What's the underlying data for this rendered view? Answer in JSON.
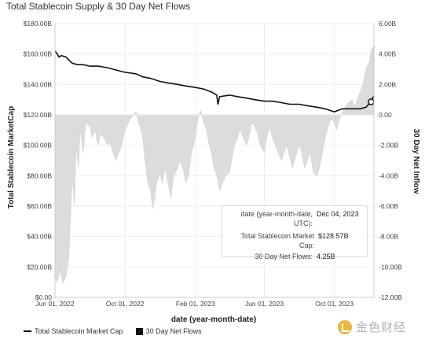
{
  "chart_title": "Total Stablecoin Supply & 30 Day Net Flows",
  "tooltip": {
    "date_label": "date (year-month-date, UTC):",
    "date_value": "Dec 04, 2023",
    "market_cap_label": "Total Stablecoin Market Cap:",
    "market_cap_value": "$128.57B",
    "flows_label": "30 Day Net Flows:",
    "flows_value": "4.25B"
  },
  "legend": {
    "market_cap": "Total Stablecoin Market Cap",
    "net_flows": "30 Day Net Flows"
  },
  "watermark": "金色财经",
  "colors": {
    "line": "#111111",
    "area": "#dcdcdc",
    "grid": "#eeeeee",
    "axis_text": "#444444"
  },
  "chart_data": {
    "type": "line",
    "title": "Total Stablecoin Supply & 30 Day Net Flows",
    "xlabel": "date (year-month-date)",
    "ylabel": "Total Stablecoin MarketCap",
    "y2label": "30 Day Net Inflow",
    "xlim": [
      "2022-06-01",
      "2023-12-09"
    ],
    "ylim": [
      0,
      180
    ],
    "y2lim": [
      -12,
      6
    ],
    "x_ticks": [
      "2022-06-01",
      "2022-10-01",
      "2023-02-01",
      "2023-06-01",
      "2023-10-01"
    ],
    "x_tick_labels": [
      "Jun 01, 2022",
      "Oct 01, 2022",
      "Feb 01, 2023",
      "Jun 01, 2023",
      "Oct 01, 2023"
    ],
    "y_ticks": [
      "$0.00",
      "$20.00B",
      "$40.00B",
      "$60.00B",
      "$80.00B",
      "$100.00B",
      "$120.00B",
      "$140.00B",
      "$160.00B",
      "$180.00B"
    ],
    "y2_ticks": [
      "-12.00B",
      "-10.00B",
      "-8.00B",
      "-6.00B",
      "-4.00B",
      "-2.00B",
      "0.00",
      "2.00B",
      "4.00B",
      "6.00B"
    ],
    "grid": true,
    "legend_position": "bottom-left",
    "series": [
      {
        "name": "Total Stablecoin Market Cap",
        "type": "line",
        "axis": "left",
        "x": [
          "2022-06-01",
          "2022-06-05",
          "2022-06-08",
          "2022-06-12",
          "2022-06-20",
          "2022-07-01",
          "2022-07-10",
          "2022-07-20",
          "2022-08-01",
          "2022-08-15",
          "2022-09-01",
          "2022-09-20",
          "2022-10-01",
          "2022-10-20",
          "2022-11-01",
          "2022-11-15",
          "2022-12-01",
          "2022-12-15",
          "2023-01-01",
          "2023-01-15",
          "2023-02-01",
          "2023-02-15",
          "2023-03-01",
          "2023-03-10",
          "2023-03-12",
          "2023-03-15",
          "2023-04-01",
          "2023-04-15",
          "2023-05-01",
          "2023-05-15",
          "2023-06-01",
          "2023-06-15",
          "2023-07-01",
          "2023-07-15",
          "2023-08-01",
          "2023-08-15",
          "2023-09-01",
          "2023-09-15",
          "2023-10-01",
          "2023-10-15",
          "2023-11-01",
          "2023-11-15",
          "2023-11-25",
          "2023-12-04",
          "2023-12-08"
        ],
        "values": [
          162,
          160,
          158,
          159,
          158,
          154,
          153,
          153,
          152,
          152,
          151,
          149,
          148,
          147,
          145,
          144,
          142,
          141,
          140,
          139,
          138,
          137,
          135,
          133,
          127,
          132,
          133,
          132,
          131,
          130,
          129,
          129,
          128,
          127,
          127,
          126,
          125,
          124,
          122,
          124,
          124,
          124,
          125,
          128.57,
          132
        ]
      },
      {
        "name": "30 Day Net Flows",
        "type": "area",
        "axis": "right",
        "x": [
          "2022-06-01",
          "2022-06-05",
          "2022-06-10",
          "2022-06-15",
          "2022-06-20",
          "2022-06-25",
          "2022-07-01",
          "2022-07-05",
          "2022-07-08",
          "2022-07-12",
          "2022-07-15",
          "2022-07-20",
          "2022-07-25",
          "2022-08-01",
          "2022-08-05",
          "2022-08-10",
          "2022-08-15",
          "2022-08-20",
          "2022-08-25",
          "2022-09-01",
          "2022-09-05",
          "2022-09-10",
          "2022-09-15",
          "2022-09-20",
          "2022-09-25",
          "2022-10-01",
          "2022-10-10",
          "2022-10-20",
          "2022-10-25",
          "2022-11-01",
          "2022-11-05",
          "2022-11-10",
          "2022-11-15",
          "2022-11-18",
          "2022-11-22",
          "2022-11-25",
          "2022-12-01",
          "2022-12-05",
          "2022-12-10",
          "2022-12-15",
          "2022-12-20",
          "2022-12-25",
          "2023-01-01",
          "2023-01-05",
          "2023-01-10",
          "2023-01-15",
          "2023-01-20",
          "2023-01-25",
          "2023-02-01",
          "2023-02-05",
          "2023-02-10",
          "2023-02-15",
          "2023-02-20",
          "2023-02-25",
          "2023-03-01",
          "2023-03-05",
          "2023-03-10",
          "2023-03-15",
          "2023-03-20",
          "2023-03-25",
          "2023-04-01",
          "2023-04-05",
          "2023-04-10",
          "2023-04-15",
          "2023-04-20",
          "2023-04-25",
          "2023-05-01",
          "2023-05-05",
          "2023-05-10",
          "2023-05-15",
          "2023-05-20",
          "2023-05-25",
          "2023-06-01",
          "2023-06-05",
          "2023-06-10",
          "2023-06-15",
          "2023-06-20",
          "2023-06-25",
          "2023-07-01",
          "2023-07-05",
          "2023-07-10",
          "2023-07-15",
          "2023-07-20",
          "2023-07-25",
          "2023-08-01",
          "2023-08-05",
          "2023-08-10",
          "2023-08-15",
          "2023-08-20",
          "2023-08-25",
          "2023-09-01",
          "2023-09-05",
          "2023-09-10",
          "2023-09-15",
          "2023-09-20",
          "2023-09-25",
          "2023-10-01",
          "2023-10-05",
          "2023-10-10",
          "2023-10-15",
          "2023-10-20",
          "2023-10-25",
          "2023-11-01",
          "2023-11-05",
          "2023-11-10",
          "2023-11-15",
          "2023-11-20",
          "2023-11-25",
          "2023-12-01",
          "2023-12-04",
          "2023-12-08"
        ],
        "values": [
          -10.5,
          -11.0,
          -10.2,
          -11.1,
          -10.6,
          -9.5,
          -4.0,
          -6.0,
          -2.0,
          -3.5,
          -1.0,
          -2.5,
          -0.5,
          -0.8,
          -1.5,
          -1.0,
          -2.0,
          -1.2,
          -1.5,
          -2.0,
          -1.8,
          -2.5,
          -3.0,
          -2.5,
          -2.0,
          -1.0,
          -0.3,
          0.2,
          -0.5,
          -1.5,
          -3.0,
          -4.5,
          -5.0,
          -6.2,
          -5.5,
          -4.5,
          -3.8,
          -4.5,
          -3.5,
          -4.5,
          -5.5,
          -4.0,
          -3.5,
          -3.0,
          -3.5,
          -4.5,
          -4.0,
          -2.5,
          -1.5,
          -0.3,
          0.3,
          -0.5,
          -1.0,
          -2.0,
          -2.5,
          -3.5,
          -4.0,
          -5.0,
          -4.5,
          -4.0,
          -3.8,
          -3.0,
          -2.0,
          -1.5,
          -1.0,
          -1.5,
          -2.0,
          -1.5,
          -0.5,
          -0.8,
          -1.2,
          -2.0,
          -2.5,
          -1.5,
          -0.8,
          -1.5,
          -2.0,
          -2.5,
          -3.0,
          -2.5,
          -2.0,
          -2.8,
          -3.5,
          -2.8,
          -2.0,
          -2.5,
          -3.5,
          -3.0,
          -2.5,
          -3.8,
          -4.0,
          -3.5,
          -2.5,
          -1.5,
          -0.8,
          -0.3,
          -0.5,
          -1.0,
          -0.3,
          0.2,
          0.5,
          0.8,
          1.0,
          0.5,
          1.0,
          1.5,
          2.0,
          3.0,
          3.5,
          4.25,
          4.5
        ]
      }
    ]
  }
}
